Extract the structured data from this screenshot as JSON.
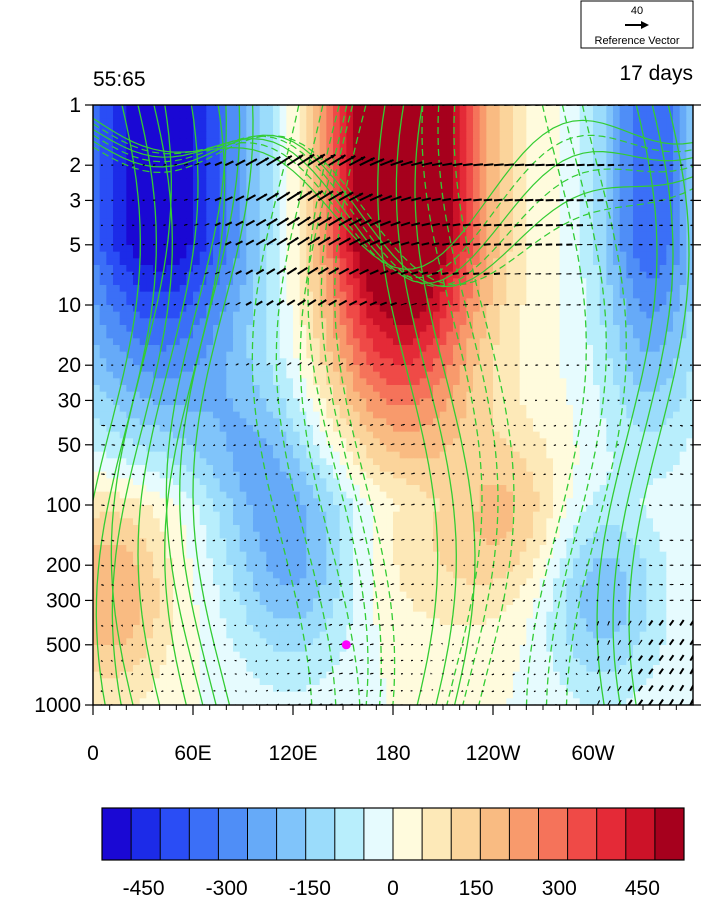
{
  "chart_data": {
    "type": "heatmap",
    "title_left": "55:65",
    "title_right": "17 days",
    "x_ticks": [
      "0",
      "60E",
      "120E",
      "180",
      "120W",
      "60W"
    ],
    "x_tick_lon": [
      0,
      60,
      120,
      180,
      240,
      300
    ],
    "xlim_lon": [
      0,
      360
    ],
    "y_scale": "log",
    "y_ticks": [
      "1",
      "2",
      "3",
      "5",
      "10",
      "20",
      "30",
      "50",
      "100",
      "200",
      "300",
      "500",
      "1000"
    ],
    "y_tick_values": [
      1,
      2,
      3,
      5,
      10,
      20,
      30,
      50,
      100,
      200,
      300,
      500,
      1000
    ],
    "ylim_pressure": [
      1000,
      1
    ],
    "colorbar": {
      "levels_min": -525,
      "levels_max": 525,
      "step": 50,
      "labels": [
        "-450",
        "-300",
        "-150",
        "0",
        "150",
        "300",
        "450"
      ],
      "label_values": [
        -450,
        -300,
        -150,
        0,
        150,
        300,
        450
      ],
      "colors": [
        "#1a08d4",
        "#1c2be8",
        "#2a4df5",
        "#3b6ff7",
        "#4f8ef7",
        "#66aaf8",
        "#80c4fa",
        "#9bdcfb",
        "#b8eefc",
        "#e6fbfe",
        "#fffbdd",
        "#fde9b8",
        "#fbd49b",
        "#f9bb82",
        "#f89a6c",
        "#f5735a",
        "#ef4a47",
        "#e42a37",
        "#cc1228",
        "#a6001d"
      ]
    },
    "reference_vector": {
      "magnitude_label": "40",
      "caption": "Reference Vector"
    },
    "marker": {
      "lon": 152,
      "pressure": 500,
      "color": "#ff00ff"
    },
    "contour_color": "#33cc33",
    "vector_color": "#000000"
  }
}
